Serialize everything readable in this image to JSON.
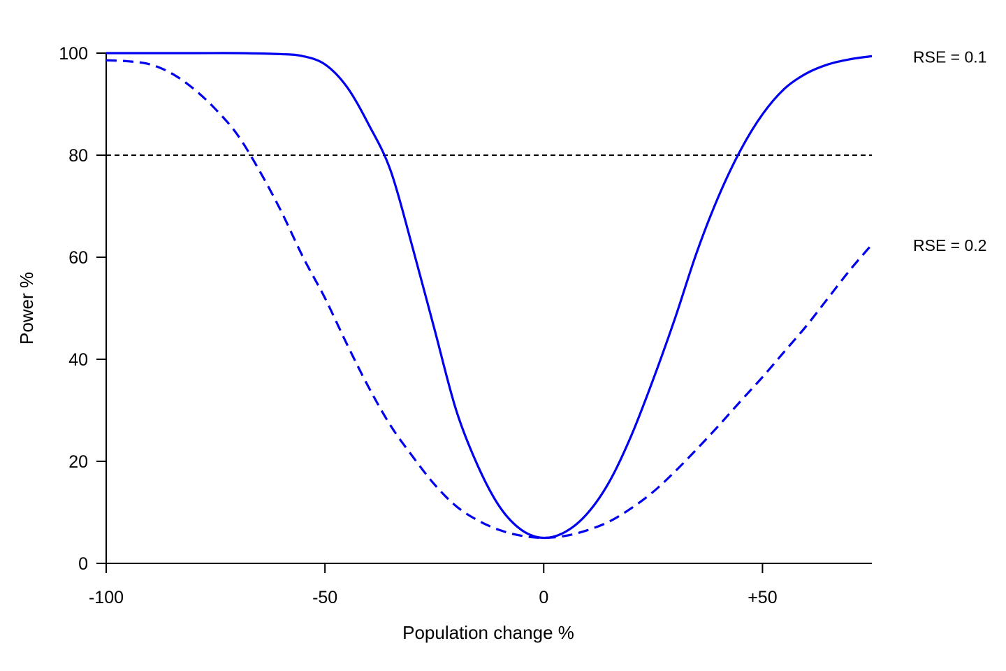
{
  "chart_data": {
    "type": "line",
    "xlabel": "Population change %",
    "ylabel": "Power %",
    "xlim": [
      -100,
      75
    ],
    "ylim": [
      0,
      100
    ],
    "x_ticks": [
      -100,
      -50,
      0,
      50
    ],
    "x_tick_labels": [
      "-100",
      "-50",
      "0",
      "+50"
    ],
    "y_ticks": [
      0,
      20,
      40,
      60,
      80,
      100
    ],
    "y_tick_labels": [
      "0",
      "20",
      "40",
      "60",
      "80",
      "100"
    ],
    "reference_line": {
      "y": 80,
      "style": "dotted",
      "color": "#000000"
    },
    "grid": false,
    "legend": "none",
    "series": [
      {
        "name": "RSE = 0.1",
        "color": "#0000EE",
        "style": "solid",
        "x": [
          -100,
          -80,
          -70,
          -60,
          -55,
          -50,
          -45,
          -40,
          -35,
          -30,
          -25,
          -20,
          -15,
          -10,
          -5,
          0,
          5,
          10,
          15,
          20,
          25,
          30,
          35,
          40,
          45,
          50,
          55,
          60,
          65,
          70,
          75
        ],
        "y": [
          100,
          100,
          100,
          99.8,
          99.4,
          97.8,
          93.4,
          86,
          77,
          62,
          46,
          30,
          19,
          11,
          6.5,
          5,
          6.2,
          9.8,
          16,
          25,
          36,
          48,
          61,
          72,
          81,
          88,
          93,
          96,
          97.8,
          98.8,
          99.4
        ]
      },
      {
        "name": "RSE = 0.2",
        "color": "#0000EE",
        "style": "dashed",
        "x": [
          -100,
          -95,
          -90,
          -85,
          -80,
          -75,
          -70,
          -65,
          -60,
          -55,
          -50,
          -45,
          -40,
          -35,
          -30,
          -25,
          -20,
          -15,
          -10,
          -5,
          0,
          5,
          10,
          15,
          20,
          25,
          30,
          35,
          40,
          45,
          50,
          55,
          60,
          65,
          70,
          75
        ],
        "y": [
          98.6,
          98.4,
          97.8,
          96,
          93,
          89,
          84,
          77,
          69,
          60,
          52,
          43,
          34.5,
          27,
          21,
          15.5,
          11.2,
          8.4,
          6.5,
          5.4,
          5,
          5.4,
          6.5,
          8.2,
          10.8,
          14,
          18,
          22.4,
          27,
          31.8,
          36.5,
          41.5,
          46.5,
          52,
          57.5,
          62.5
        ]
      }
    ]
  }
}
